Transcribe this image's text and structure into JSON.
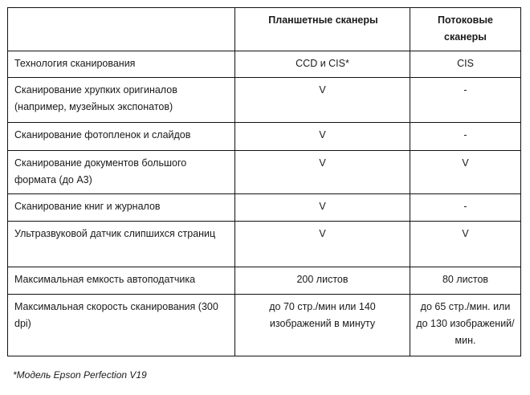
{
  "table": {
    "headers": [
      "",
      "Планшетные сканеры",
      "Потоковые сканеры"
    ],
    "rows": [
      [
        "Технология сканирования",
        "CCD и CIS*",
        "CIS"
      ],
      [
        "Сканирование хрупких оригиналов (например, музейных экспонатов)",
        "V",
        "-"
      ],
      [
        "Сканирование фотопленок и слайдов",
        "V",
        "-"
      ],
      [
        "Сканирование документов большого формата (до А3)",
        "V",
        "V"
      ],
      [
        "Сканирование книг и журналов",
        "V",
        "-"
      ],
      [
        "Ультразвуковой датчик слипшихся страниц",
        "V",
        "V"
      ],
      [
        "Максимальная емкость автоподатчика",
        "200  листов",
        "80 листов"
      ],
      [
        "Максимальная скорость сканирования (300 dpi)",
        "до 70 стр./мин или 140 изображений в минуту",
        "до 65 стр./мин. или до 130 изображений/мин."
      ]
    ]
  },
  "footnote": "*Модель Epson Perfection  V19"
}
